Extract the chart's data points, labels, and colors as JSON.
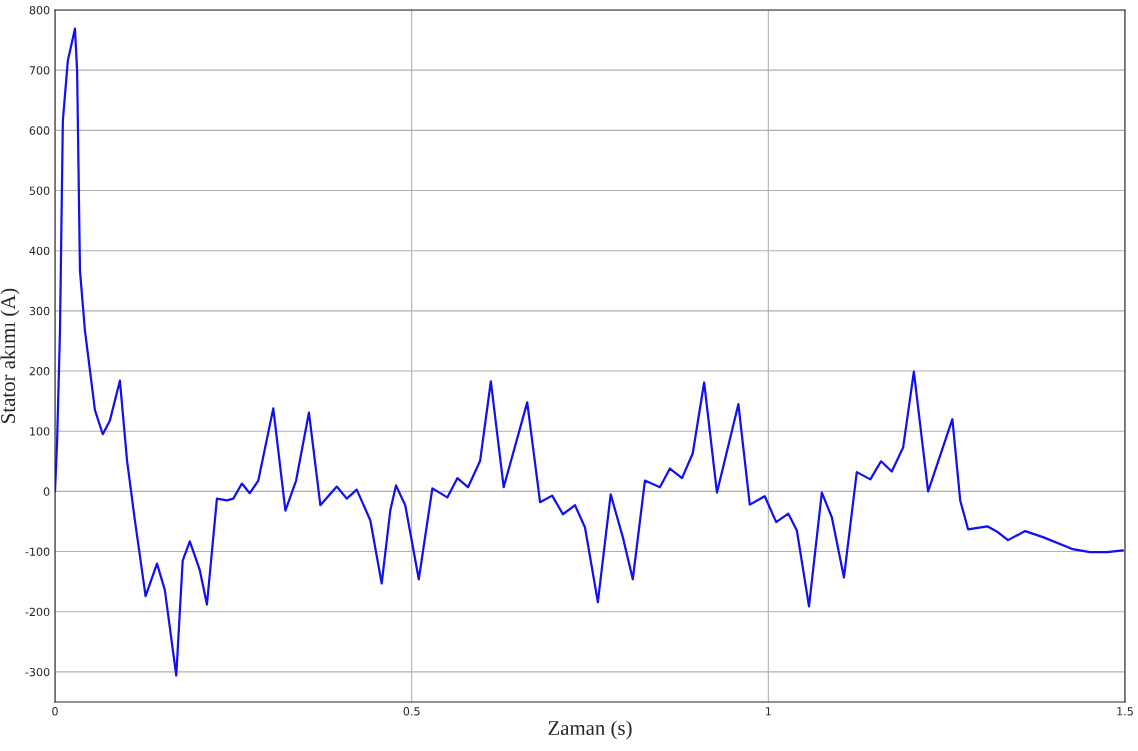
{
  "chart_data": {
    "type": "line",
    "xlabel": "Zaman (s)",
    "ylabel": "Stator akımı (A)",
    "xlim": [
      0,
      1.5
    ],
    "ylim": [
      -350,
      800
    ],
    "xticks": [
      0,
      0.5,
      1,
      1.5
    ],
    "yticks": [
      -300,
      -200,
      -100,
      0,
      100,
      200,
      300,
      400,
      500,
      600,
      700,
      800
    ],
    "grid": true,
    "series": [
      {
        "color": "#1010f0",
        "x": [
          0,
          0.003,
          0.007,
          0.011,
          0.018,
          0.028,
          0.031,
          0.035,
          0.042,
          0.056,
          0.067,
          0.077,
          0.091,
          0.101,
          0.112,
          0.127,
          0.143,
          0.154,
          0.17,
          0.179,
          0.189,
          0.203,
          0.213,
          0.227,
          0.241,
          0.25,
          0.262,
          0.273,
          0.285,
          0.306,
          0.323,
          0.338,
          0.356,
          0.372,
          0.395,
          0.409,
          0.423,
          0.442,
          0.458,
          0.47,
          0.478,
          0.491,
          0.51,
          0.529,
          0.55,
          0.564,
          0.579,
          0.596,
          0.611,
          0.629,
          0.662,
          0.68,
          0.697,
          0.712,
          0.729,
          0.743,
          0.761,
          0.779,
          0.796,
          0.81,
          0.827,
          0.848,
          0.862,
          0.879,
          0.894,
          0.91,
          0.928,
          0.958,
          0.974,
          0.995,
          1.011,
          1.028,
          1.04,
          1.057,
          1.075,
          1.089,
          1.106,
          1.124,
          1.143,
          1.158,
          1.173,
          1.189,
          1.204,
          1.224,
          1.258,
          1.269,
          1.28,
          1.307,
          1.322,
          1.336,
          1.36,
          1.385,
          1.427,
          1.451,
          1.475,
          1.497
        ],
        "values": [
          0,
          85,
          267,
          616,
          716,
          769,
          699,
          367,
          267,
          135,
          95,
          118,
          184,
          51,
          -48,
          -174,
          -120,
          -164,
          -306,
          -115,
          -83,
          -131,
          -188,
          -12,
          -15,
          -12,
          13,
          -3,
          18,
          138,
          -32,
          18,
          131,
          -23,
          8,
          -12,
          3,
          -48,
          -153,
          -32,
          10,
          -23,
          -146,
          5,
          -10,
          22,
          7,
          51,
          183,
          7,
          148,
          -18,
          -7,
          -38,
          -23,
          -60,
          -184,
          -5,
          -76,
          -146,
          18,
          7,
          38,
          22,
          63,
          181,
          -2,
          145,
          -22,
          -8,
          -51,
          -37,
          -65,
          -191,
          -2,
          -43,
          -143,
          32,
          20,
          50,
          33,
          73,
          199,
          0,
          120,
          -15,
          -63,
          -58,
          -68,
          -81,
          -66,
          -76,
          -96,
          -101,
          -101,
          -98
        ]
      }
    ]
  }
}
